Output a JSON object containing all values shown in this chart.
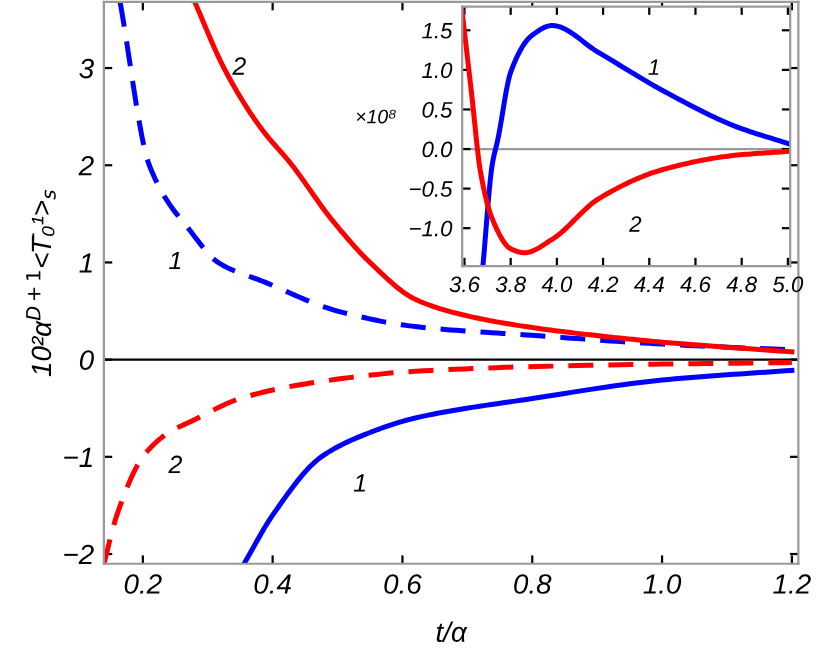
{
  "chart_data": [
    {
      "type": "line",
      "xlabel": "t/α",
      "ylabel": "10²α$^{D+1}$<T̄₀¹>$_{s}$",
      "xlim": [
        0.14,
        1.21
      ],
      "ylim": [
        -2.1,
        3.68
      ],
      "xticks": [
        0.2,
        0.4,
        0.6,
        0.8,
        {
          "value": 1.0,
          "label": "1.0"
        },
        1.2
      ],
      "yticks": [
        {
          "value": -2,
          "label": "−2"
        },
        {
          "value": -1,
          "label": "−1"
        },
        0,
        1,
        2,
        3
      ],
      "grid": false,
      "legend": false,
      "marker": "none",
      "series": [
        {
          "color": "#0000ff",
          "line_style": "dashed",
          "x": [
            0.165,
            0.21,
            0.276,
            0.316,
            0.387,
            0.5,
            0.62,
            0.8,
            1.0,
            1.2
          ],
          "values": [
            3.68,
            2.0,
            1.3,
            1.0,
            0.8,
            0.5,
            0.34,
            0.25,
            0.16,
            0.1
          ]
        },
        {
          "color": "#ff0000",
          "line_style": "solid",
          "x": [
            0.28,
            0.325,
            0.38,
            0.43,
            0.49,
            0.55,
            0.62,
            0.7,
            0.8,
            0.87,
            1.0,
            1.2
          ],
          "values": [
            3.68,
            3.0,
            2.4,
            2.0,
            1.45,
            1.0,
            0.62,
            0.45,
            0.33,
            0.27,
            0.18,
            0.08
          ]
        },
        {
          "color": "#ff0000",
          "line_style": "dashed",
          "x": [
            0.14,
            0.16,
            0.2,
            0.24,
            0.276,
            0.35,
            0.45,
            0.62,
            0.87,
            1.2
          ],
          "values": [
            -2.1,
            -1.6,
            -1.0,
            -0.75,
            -0.63,
            -0.4,
            -0.25,
            -0.12,
            -0.06,
            -0.03
          ]
        },
        {
          "color": "#0000ff",
          "line_style": "solid",
          "x": [
            0.356,
            0.4,
            0.475,
            0.55,
            0.62,
            0.8,
            1.0,
            1.2
          ],
          "values": [
            -2.1,
            -1.6,
            -1.0,
            -0.75,
            -0.6,
            -0.4,
            -0.21,
            -0.11
          ]
        }
      ],
      "ref_lines": [
        {
          "axis": "y",
          "value": 0,
          "color": "#000000"
        }
      ],
      "annotations": [
        "2",
        "1",
        "2",
        "1"
      ]
    },
    {
      "type": "line",
      "xlim": [
        3.59,
        5.01
      ],
      "ylim": [
        -1.48,
        1.8
      ],
      "xticks": [
        3.6,
        3.8,
        {
          "value": 4.0,
          "label": "4.0"
        },
        4.2,
        4.4,
        4.6,
        4.8,
        {
          "value": 5.0,
          "label": "5.0"
        }
      ],
      "yticks": [
        {
          "value": -1,
          "label": "−1.0"
        },
        {
          "value": -0.5,
          "label": "−0.5"
        },
        {
          "value": 0,
          "label": "0.0"
        },
        0.5,
        {
          "value": 1,
          "label": "1.0"
        },
        1.5
      ],
      "grid": false,
      "legend": false,
      "marker": "none",
      "series": [
        {
          "color": "#0000ff",
          "line_style": "solid",
          "x": [
            3.68,
            3.72,
            3.745,
            3.8,
            3.89,
            3.98,
            4.18,
            4.47,
            4.77,
            5.0
          ],
          "values": [
            -1.47,
            -0.2,
            0.13,
            0.97,
            1.43,
            1.56,
            1.22,
            0.72,
            0.29,
            0.07
          ]
        },
        {
          "color": "#ff0000",
          "line_style": "solid",
          "x": [
            3.59,
            3.63,
            3.67,
            3.72,
            3.8,
            3.86,
            3.98,
            4.18,
            4.47,
            4.77,
            5.0
          ],
          "values": [
            1.73,
            0.72,
            -0.3,
            -0.88,
            -1.26,
            -1.31,
            -1.14,
            -0.63,
            -0.25,
            -0.08,
            -0.03
          ]
        }
      ],
      "ref_lines": [
        {
          "axis": "y",
          "value": 0,
          "color": "#999999"
        }
      ],
      "annotations": [
        "×10⁸",
        "1",
        "2"
      ]
    }
  ]
}
